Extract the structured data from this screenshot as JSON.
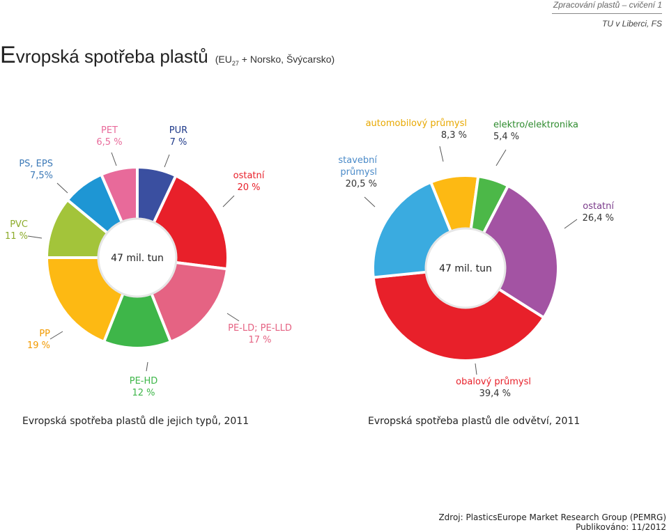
{
  "header": {
    "line1": "Zpracování plastů – cvičení 1",
    "line2": "TU v Liberci, FS"
  },
  "title": {
    "first_letter": "E",
    "rest": "vropská spotřeba plastů",
    "sub_prefix": "(EU",
    "sub_index": "27",
    "sub_suffix": " + Norsko, Švýcarsko)"
  },
  "chart_data": [
    {
      "type": "pie",
      "center_label": "47 mil. tun",
      "caption": "Evropská spotřeba plastů dle jejich typů, 2011",
      "slices": [
        {
          "name": "PUR",
          "label": "PUR",
          "value_label": "7 %",
          "value": 7,
          "color": "#3a4fa0",
          "text_color": "#1f3a8a"
        },
        {
          "name": "ostatní",
          "label": "ostatní",
          "value_label": "20 %",
          "value": 20,
          "color": "#e8202a",
          "text_color": "#e8202a"
        },
        {
          "name": "PE-LD; PE-LLD",
          "label": "PE-LD; PE-LLD",
          "value_label": "17 %",
          "value": 17,
          "color": "#e56383",
          "text_color": "#e56383"
        },
        {
          "name": "PE-HD",
          "label": "PE-HD",
          "value_label": "12 %",
          "value": 12,
          "color": "#3eb649",
          "text_color": "#3eb649"
        },
        {
          "name": "PP",
          "label": "PP",
          "value_label": "19 %",
          "value": 19,
          "color": "#fdb913",
          "text_color": "#f29a00"
        },
        {
          "name": "PVC",
          "label": "PVC",
          "value_label": "11 %",
          "value": 11,
          "color": "#a3c43a",
          "text_color": "#8cab2a"
        },
        {
          "name": "PS, EPS",
          "label": "PS, EPS",
          "value_label": "7,5%",
          "value": 7.5,
          "color": "#1e96d4",
          "text_color": "#3d7ab8"
        },
        {
          "name": "PET",
          "label": "PET",
          "value_label": "6,5 %",
          "value": 6.5,
          "color": "#e86a9a",
          "text_color": "#e86a9a"
        }
      ]
    },
    {
      "type": "pie",
      "center_label": "47 mil. tun",
      "caption": "Evropská spotřeba plastů dle odvětví, 2011",
      "slices": [
        {
          "name": "automobilový průmysl",
          "label": "automobilový průmysl",
          "value_label": "8,3 %",
          "value": 8.3,
          "color": "#fdb913",
          "text_color": "#e8a800"
        },
        {
          "name": "elektro/elektronika",
          "label": "elektro/elektronika",
          "value_label": "5,4 %",
          "value": 5.4,
          "color": "#4cb848",
          "text_color": "#2e8b2e"
        },
        {
          "name": "ostatní",
          "label": "ostatní",
          "value_label": "26,4 %",
          "value": 26.4,
          "color": "#a353a3",
          "text_color": "#7a3a8a"
        },
        {
          "name": "obalový průmysl",
          "label": "obalový průmysl",
          "value_label": "39,4 %",
          "value": 39.4,
          "color": "#e8202a",
          "text_color": "#e8202a"
        },
        {
          "name": "stavební průmysl",
          "label": "stavební průmysl",
          "value_label": "20,5 %",
          "value": 20.5,
          "color": "#3aabe0",
          "text_color": "#4a8ac8"
        }
      ]
    }
  ],
  "source": {
    "line1": "Zdroj: PlasticsEurope  Market Research Group (PEMRG)",
    "line2": "Publikováno: 11/2012"
  }
}
